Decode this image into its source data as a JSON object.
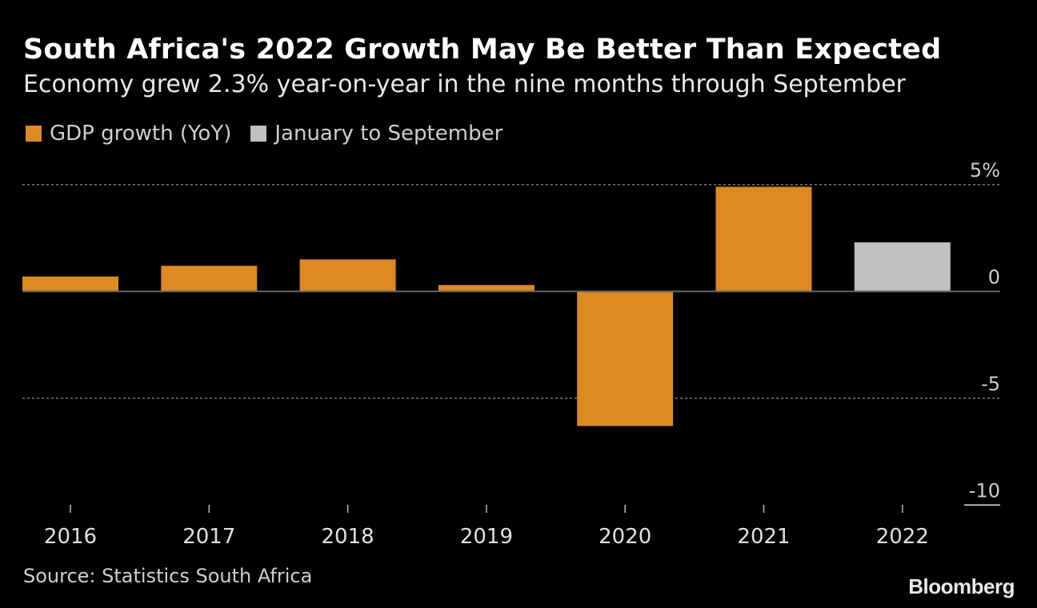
{
  "chart_data": {
    "type": "bar",
    "title": "South Africa's 2022 Growth May Be Better Than Expected",
    "subtitle": "Economy grew 2.3% year-on-year in the nine months through September",
    "categories": [
      "2016",
      "2017",
      "2018",
      "2019",
      "2020",
      "2021",
      "2022"
    ],
    "values": [
      0.7,
      1.2,
      1.5,
      0.3,
      -6.3,
      4.9,
      2.3
    ],
    "series_of_point": [
      0,
      0,
      0,
      0,
      0,
      0,
      1
    ],
    "legend": [
      {
        "name": "GDP growth (YoY)",
        "color": "#dd8a24"
      },
      {
        "name": "January to September",
        "color": "#c0c0c0"
      }
    ],
    "legend_placement": "top-left",
    "ylim": [
      -10,
      5
    ],
    "yticks": [
      5,
      0,
      -5,
      -10
    ],
    "ytick_labels": [
      "5%",
      "0",
      "-5",
      "-10"
    ],
    "y_axis_side": "right",
    "grid": "dotted horizontal",
    "xlabel": "",
    "ylabel": ""
  },
  "source": "Source: Statistics South Africa",
  "logo": "Bloomberg"
}
